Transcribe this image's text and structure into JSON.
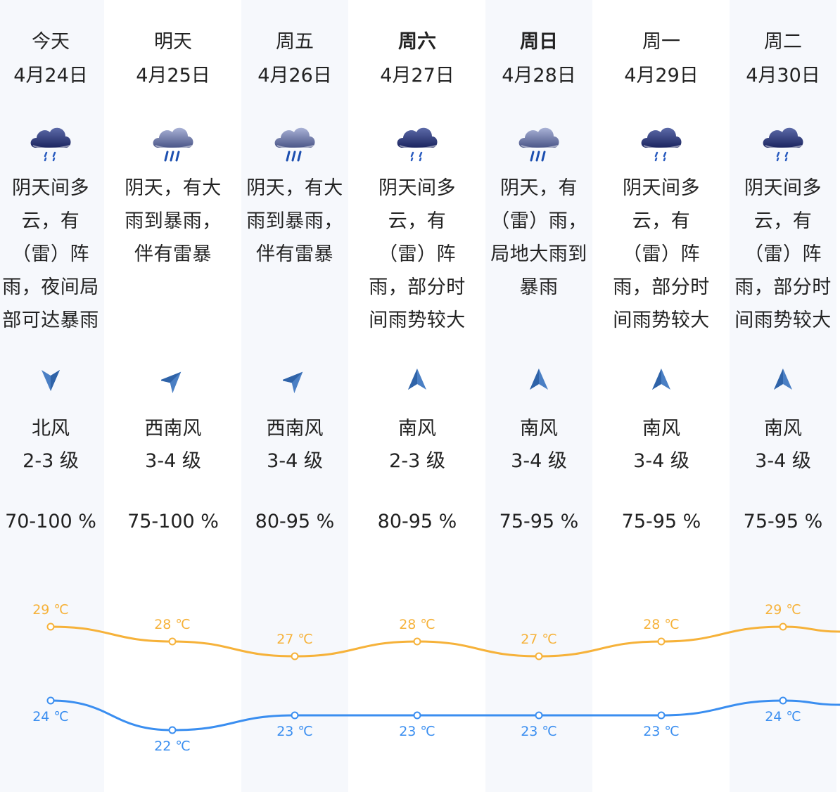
{
  "days": [
    {
      "weekday": "今天",
      "date": "4月24日",
      "bold": false,
      "icon": "rain-cloud-icon",
      "desc": [
        "阴天间多",
        "云，有",
        "（雷）阵",
        "雨，夜间局",
        "部可达暴雨"
      ],
      "wind_dir": "北风",
      "wind_deg": 180,
      "wind_level": "2-3 级",
      "humidity": "70-100 %",
      "high_label": "29 ℃",
      "low_label": "24 ℃"
    },
    {
      "weekday": "明天",
      "date": "4月25日",
      "bold": false,
      "icon": "heavy-rain-cloud-icon",
      "desc": [
        "阴天，有大",
        "雨到暴雨，",
        "伴有雷暴"
      ],
      "wind_dir": "西南风",
      "wind_deg": 45,
      "wind_level": "3-4 级",
      "humidity": "75-100 %",
      "high_label": "28 ℃",
      "low_label": "22 ℃"
    },
    {
      "weekday": "周五",
      "date": "4月26日",
      "bold": false,
      "icon": "heavy-rain-cloud-icon",
      "desc": [
        "阴天，有大",
        "雨到暴雨，",
        "伴有雷暴"
      ],
      "wind_dir": "西南风",
      "wind_deg": 45,
      "wind_level": "3-4 级",
      "humidity": "80-95 %",
      "high_label": "27 ℃",
      "low_label": "23 ℃"
    },
    {
      "weekday": "周六",
      "date": "4月27日",
      "bold": true,
      "icon": "rain-cloud-icon",
      "desc": [
        "阴天间多",
        "云，有",
        "（雷）阵",
        "雨，部分时",
        "间雨势较大"
      ],
      "wind_dir": "南风",
      "wind_deg": 0,
      "wind_level": "2-3 级",
      "humidity": "80-95 %",
      "high_label": "28 ℃",
      "low_label": "23 ℃"
    },
    {
      "weekday": "周日",
      "date": "4月28日",
      "bold": true,
      "icon": "heavy-rain-cloud-icon",
      "desc": [
        "阴天，有",
        "（雷）雨，",
        "局地大雨到",
        "暴雨"
      ],
      "wind_dir": "南风",
      "wind_deg": 0,
      "wind_level": "3-4 级",
      "humidity": "75-95 %",
      "high_label": "27 ℃",
      "low_label": "23 ℃"
    },
    {
      "weekday": "周一",
      "date": "4月29日",
      "bold": false,
      "icon": "rain-cloud-icon",
      "desc": [
        "阴天间多",
        "云，有",
        "（雷）阵",
        "雨，部分时",
        "间雨势较大"
      ],
      "wind_dir": "南风",
      "wind_deg": 0,
      "wind_level": "3-4 级",
      "humidity": "75-95 %",
      "high_label": "28 ℃",
      "low_label": "23 ℃"
    },
    {
      "weekday": "周二",
      "date": "4月30日",
      "bold": false,
      "icon": "rain-cloud-icon",
      "desc": [
        "阴天间多",
        "云，有",
        "（雷）阵",
        "雨，部分时",
        "间雨势较大"
      ],
      "wind_dir": "南风",
      "wind_deg": 0,
      "wind_level": "3-4 级",
      "humidity": "75-95 %",
      "high_label": "29 ℃",
      "low_label": "24 ℃"
    }
  ],
  "chart_data": {
    "type": "line",
    "categories": [
      "4月24日",
      "4月25日",
      "4月26日",
      "4月27日",
      "4月28日",
      "4月29日",
      "4月30日"
    ],
    "series": [
      {
        "values": [
          29,
          28,
          27,
          28,
          27,
          28,
          29
        ],
        "color": "#f6b23a"
      },
      {
        "values": [
          24,
          22,
          23,
          23,
          23,
          23,
          24
        ],
        "color": "#3a8ef0"
      }
    ],
    "unit": "℃"
  }
}
